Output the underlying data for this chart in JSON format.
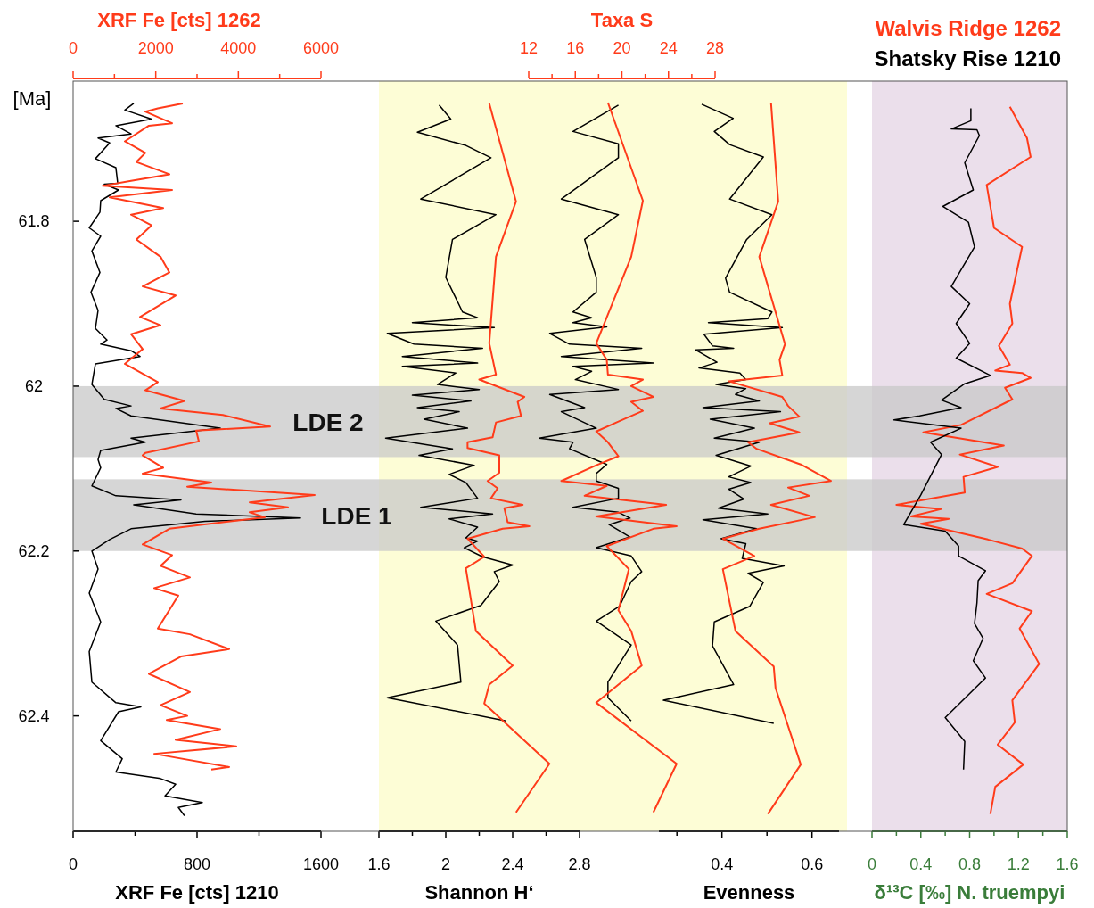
{
  "chart_data": [
    {
      "type": "line",
      "orientation": "horizontal",
      "ylabel": "[Ma]",
      "xlabel": "XRF Fe [cts] 1210",
      "x2label": "XRF Fe [cts] 1262",
      "ylim": [
        62.54,
        61.63
      ],
      "yticks": [
        61.8,
        62,
        62.2,
        62.4
      ],
      "xlim": [
        0,
        1600
      ],
      "xticks": [
        0,
        {
          "value": 400,
          "label": null
        },
        800,
        {
          "value": 1200,
          "label": null
        },
        1600
      ],
      "x2lim": [
        0,
        6000
      ],
      "x2ticks": [
        0,
        {
          "value": 1000,
          "label": null
        },
        2000,
        {
          "value": 3000,
          "label": null
        },
        4000,
        {
          "value": 5000,
          "label": null
        },
        6000
      ],
      "bands": [
        {
          "axis": "y",
          "from": 62.0,
          "to": 62.086,
          "label": "LDE 2",
          "color": "#c8c8c8"
        },
        {
          "axis": "y",
          "from": 62.113,
          "to": 62.2,
          "label": "LDE 1",
          "color": "#c8c8c8"
        }
      ],
      "series": [
        {
          "color": "#000000",
          "x": [
            61.657,
            61.665,
            61.676,
            61.684,
            61.694,
            61.699,
            61.705,
            61.724,
            61.735,
            61.754,
            61.755,
            61.762,
            61.775,
            61.789,
            61.808,
            61.818,
            61.836,
            61.862,
            61.886,
            61.908,
            61.93,
            61.944,
            61.949,
            61.957,
            61.964,
            61.973,
            61.998,
            62.016,
            62.024,
            62.027,
            62.036,
            62.051,
            62.063,
            62.068,
            62.078,
            62.089,
            62.099,
            62.121,
            62.133,
            62.138,
            62.144,
            62.155,
            62.16,
            62.164,
            62.173,
            62.186,
            62.2,
            62.222,
            62.251,
            62.286,
            62.322,
            62.359,
            62.384,
            62.389,
            62.395,
            62.43,
            62.452,
            62.468,
            62.476,
            62.483,
            62.497,
            62.505,
            62.511,
            62.521
          ],
          "values": [
            391,
            334,
            506,
            276,
            374,
            161,
            236,
            144,
            276,
            288,
            201,
            293,
            178,
            173,
            104,
            178,
            121,
            173,
            115,
            161,
            144,
            219,
            178,
            374,
            432,
            144,
            121,
            201,
            374,
            276,
            374,
            950,
            374,
            466,
            178,
            161,
            178,
            121,
            276,
            696,
            391,
            794,
            1468,
            852,
            374,
            236,
            121,
            161,
            104,
            178,
            104,
            121,
            276,
            437,
            293,
            178,
            317,
            276,
            564,
            662,
            593,
            834,
            679,
            719
          ]
        },
        {
          "color": "#ff3b1a",
          "axis": "x2",
          "x": [
            61.657,
            61.663,
            61.667,
            61.681,
            61.684,
            61.703,
            61.717,
            61.728,
            61.743,
            61.751,
            61.757,
            61.762,
            61.771,
            61.784,
            61.792,
            61.805,
            61.822,
            61.843,
            61.862,
            61.879,
            61.89,
            61.916,
            61.926,
            61.937,
            61.955,
            61.973,
            61.995,
            62.005,
            62.018,
            62.027,
            62.035,
            62.049,
            62.054,
            62.067,
            62.081,
            62.084,
            62.099,
            62.106,
            62.117,
            62.122,
            62.132,
            62.141,
            62.147,
            62.153,
            62.159,
            62.173,
            62.192,
            62.205,
            62.218,
            62.232,
            62.245,
            62.254,
            62.294,
            62.301,
            62.319,
            62.328,
            62.349,
            62.371,
            62.387,
            62.4,
            62.405,
            62.416,
            62.429,
            62.437,
            62.446,
            62.462,
            62.465
          ],
          "values": [
            2654,
            2050,
            1748,
            2395,
            1834,
            1252,
            1748,
            1532,
            2331,
            1403,
            712,
            2395,
            885,
            2180,
            1403,
            1899,
            1532,
            2115,
            2331,
            1683,
            2482,
            1619,
            2115,
            1403,
            1683,
            1252,
            2050,
            1748,
            2698,
            2115,
            3625,
            4769,
            2978,
            3043,
            1748,
            1683,
            2180,
            1683,
            3345,
            2762,
            5848,
            4273,
            5201,
            4273,
            4640,
            2331,
            1683,
            2395,
            2115,
            2827,
            1964,
            2546,
            2050,
            2827,
            3777,
            2611,
            1834,
            2827,
            2115,
            2762,
            2266,
            3561,
            2482,
            3949,
            1964,
            3777,
            3345
          ]
        }
      ]
    },
    {
      "type": "line",
      "orientation": "horizontal",
      "xlabel": "Shannon H‘",
      "tick_labels": "x",
      "ylim": [
        62.54,
        61.63
      ],
      "xlim": [
        1.6,
        2.8
      ],
      "xticks": [
        1.6,
        {
          "value": 1.8,
          "label": null
        },
        2,
        {
          "value": 2.2,
          "label": null
        },
        2.4,
        {
          "value": 2.6,
          "label": null
        },
        2.8
      ],
      "series": [
        {
          "color": "#000000",
          "x": [
            61.659,
            61.676,
            61.692,
            61.708,
            61.723,
            61.773,
            61.792,
            61.822,
            61.868,
            61.91,
            61.917,
            61.923,
            61.929,
            61.936,
            61.949,
            61.954,
            61.964,
            61.972,
            61.976,
            61.984,
            61.998,
            62.004,
            62.011,
            62.018,
            62.026,
            62.031,
            62.04,
            62.051,
            62.063,
            62.076,
            62.084,
            62.096,
            62.107,
            62.117,
            62.136,
            62.147,
            62.155,
            62.161,
            62.171,
            62.184,
            62.188,
            62.196,
            62.207,
            62.217,
            62.225,
            62.237,
            62.266,
            62.285,
            62.314,
            62.359,
            62.378,
            62.406
          ],
          "values": [
            1.96,
            2.03,
            1.83,
            2.12,
            2.27,
            1.85,
            2.3,
            2.04,
            2.0,
            2.1,
            2.19,
            1.8,
            2.29,
            1.65,
            1.81,
            2.22,
            1.74,
            2.19,
            1.74,
            2.06,
            1.95,
            2.2,
            1.8,
            2.15,
            1.83,
            2.08,
            1.87,
            2.13,
            1.64,
            2.04,
            1.84,
            2.17,
            2.02,
            2.12,
            2.19,
            1.85,
            2.28,
            2.02,
            2.19,
            2.12,
            2.19,
            2.11,
            2.22,
            2.4,
            2.29,
            2.32,
            2.21,
            1.94,
            2.07,
            2.09,
            1.65,
            2.36
          ]
        },
        {
          "color": "#ff3b1a",
          "x": [
            61.657,
            61.776,
            61.843,
            61.948,
            61.986,
            61.992,
            62.013,
            62.019,
            62.036,
            62.044,
            62.062,
            62.068,
            62.075,
            62.084,
            62.105,
            62.115,
            62.124,
            62.136,
            62.144,
            62.148,
            62.165,
            62.17,
            62.173,
            62.185,
            62.207,
            62.221,
            62.297,
            62.339,
            62.362,
            62.385,
            62.458,
            62.517
          ],
          "values": [
            2.26,
            2.42,
            2.3,
            2.26,
            2.3,
            2.2,
            2.47,
            2.43,
            2.45,
            2.3,
            2.28,
            2.13,
            2.13,
            2.32,
            2.32,
            2.25,
            2.31,
            2.27,
            2.46,
            2.35,
            2.37,
            2.5,
            2.34,
            2.13,
            2.23,
            2.12,
            2.18,
            2.4,
            2.26,
            2.23,
            2.62,
            2.42
          ]
        }
      ]
    },
    {
      "type": "line",
      "orientation": "horizontal",
      "x2label": "Taxa S",
      "tick_labels": "x",
      "ylim": [
        62.54,
        61.63
      ],
      "x2lim": [
        12,
        28
      ],
      "x2ticks": [
        12,
        {
          "value": 14,
          "label": null
        },
        16,
        {
          "value": 18,
          "label": null
        },
        20,
        {
          "value": 22,
          "label": null
        },
        24,
        {
          "value": 26,
          "label": null
        },
        28
      ],
      "series": [
        {
          "color": "#000000",
          "axis": "x2",
          "x": [
            61.659,
            61.691,
            61.706,
            61.723,
            61.773,
            61.792,
            61.822,
            61.868,
            61.886,
            61.91,
            61.917,
            61.923,
            61.928,
            61.936,
            61.949,
            61.954,
            61.964,
            61.972,
            61.976,
            61.982,
            61.992,
            62.004,
            62.01,
            62.026,
            62.031,
            62.051,
            62.063,
            62.068,
            62.076,
            62.095,
            62.106,
            62.115,
            62.124,
            62.136,
            62.147,
            62.153,
            62.16,
            62.168,
            62.183,
            62.196,
            62.206,
            62.225,
            62.237,
            62.267,
            62.285,
            62.314,
            62.359,
            62.378,
            62.406
          ],
          "values": [
            19.7,
            15.8,
            19.7,
            19.7,
            14.8,
            19.7,
            16.8,
            17.8,
            17.8,
            15.8,
            17.4,
            15.8,
            18.7,
            13.8,
            15.5,
            21.7,
            14.8,
            22.7,
            15.8,
            17.4,
            16.0,
            19.7,
            13.8,
            16.8,
            14.8,
            17.8,
            12.9,
            15.8,
            15.5,
            18.7,
            17.8,
            17.8,
            19.7,
            19.7,
            15.8,
            19.7,
            20.7,
            18.9,
            20.7,
            17.8,
            20.8,
            21.7,
            20.8,
            19.8,
            17.8,
            20.8,
            18.8,
            18.8,
            20.8
          ]
        },
        {
          "color": "#ff3b1a",
          "axis": "x2",
          "x": [
            61.656,
            61.775,
            61.843,
            61.948,
            61.968,
            61.986,
            61.992,
            62.0,
            62.013,
            62.019,
            62.03,
            62.043,
            62.055,
            62.068,
            62.085,
            62.096,
            62.115,
            62.121,
            62.133,
            62.144,
            62.158,
            62.17,
            62.173,
            62.194,
            62.222,
            62.272,
            62.297,
            62.339,
            62.384,
            62.458,
            62.517
          ],
          "values": [
            18.8,
            21.8,
            20.8,
            17.8,
            18.7,
            18.8,
            21.8,
            20.8,
            22.7,
            20.8,
            21.8,
            19.7,
            17.8,
            18.8,
            19.7,
            17.8,
            14.8,
            18.7,
            16.8,
            23.8,
            17.8,
            24.7,
            22.7,
            18.7,
            20.6,
            19.7,
            20.8,
            21.7,
            17.8,
            24.7,
            22.7
          ]
        }
      ]
    },
    {
      "type": "line",
      "orientation": "horizontal",
      "xlabel": "Evenness",
      "tick_labels": "x",
      "ylim": [
        62.54,
        61.63
      ],
      "xlim": [
        0.26,
        0.66
      ],
      "xticks": [
        {
          "value": 0.3,
          "label": null
        },
        0.4,
        {
          "value": 0.5,
          "label": null
        },
        0.6
      ],
      "series": [
        {
          "color": "#000000",
          "x": [
            61.658,
            61.675,
            61.691,
            61.707,
            61.722,
            61.773,
            61.792,
            61.822,
            61.869,
            61.886,
            61.91,
            61.918,
            61.923,
            61.929,
            61.937,
            61.951,
            61.954,
            61.956,
            61.971,
            61.978,
            61.984,
            61.992,
            61.998,
            62.003,
            62.01,
            62.018,
            62.026,
            62.031,
            62.04,
            62.051,
            62.063,
            62.068,
            62.084,
            62.097,
            62.11,
            62.117,
            62.125,
            62.137,
            62.148,
            62.155,
            62.162,
            62.173,
            62.185,
            62.191,
            62.209,
            62.218,
            62.227,
            62.238,
            62.267,
            62.286,
            62.315,
            62.362,
            62.381,
            62.409
          ],
          "values": [
            0.355,
            0.425,
            0.383,
            0.417,
            0.492,
            0.417,
            0.511,
            0.455,
            0.408,
            0.417,
            0.511,
            0.502,
            0.37,
            0.534,
            0.36,
            0.379,
            0.426,
            0.342,
            0.389,
            0.349,
            0.44,
            0.453,
            0.387,
            0.453,
            0.43,
            0.483,
            0.358,
            0.53,
            0.374,
            0.472,
            0.383,
            0.483,
            0.387,
            0.464,
            0.415,
            0.464,
            0.415,
            0.449,
            0.392,
            0.502,
            0.358,
            0.477,
            0.398,
            0.453,
            0.445,
            0.538,
            0.458,
            0.492,
            0.462,
            0.383,
            0.379,
            0.426,
            0.27,
            0.515
          ]
        },
        {
          "color": "#ff3b1a",
          "x": [
            61.656,
            61.776,
            61.843,
            61.949,
            61.968,
            61.987,
            61.994,
            62.013,
            62.024,
            62.037,
            62.045,
            62.056,
            62.068,
            62.076,
            62.095,
            62.115,
            62.123,
            62.133,
            62.144,
            62.159,
            62.173,
            62.185,
            62.206,
            62.222,
            62.297,
            62.34,
            62.366,
            62.459,
            62.519
          ],
          "values": [
            0.509,
            0.525,
            0.483,
            0.54,
            0.528,
            0.534,
            0.415,
            0.534,
            0.547,
            0.572,
            0.506,
            0.572,
            0.458,
            0.477,
            0.575,
            0.642,
            0.547,
            0.594,
            0.509,
            0.606,
            0.483,
            0.402,
            0.472,
            0.402,
            0.43,
            0.515,
            0.519,
            0.575,
            0.502
          ]
        }
      ]
    },
    {
      "type": "line",
      "orientation": "horizontal",
      "xlabel": "δ¹³C [‰] N. truempyi",
      "tick_labels": "x",
      "legend": "top right",
      "ylim": [
        62.54,
        61.63
      ],
      "xlim": [
        0,
        1.6
      ],
      "xticks": [
        0,
        {
          "value": 0.2,
          "label": null
        },
        0.4,
        {
          "value": 0.6,
          "label": null
        },
        0.8,
        {
          "value": 1.0,
          "label": null
        },
        1.2,
        {
          "value": 1.4,
          "label": null
        },
        1.6
      ],
      "series": [
        {
          "name": "Walvis Ridge 1262",
          "color": "#ff3b1a",
          "x": [
            61.661,
            61.699,
            61.722,
            61.756,
            61.808,
            61.831,
            61.9,
            61.924,
            61.951,
            61.974,
            61.981,
            61.984,
            61.99,
            62.002,
            62.016,
            62.047,
            62.056,
            62.072,
            62.083,
            62.098,
            62.11,
            62.129,
            62.144,
            62.149,
            62.158,
            62.161,
            62.167,
            62.186,
            62.197,
            62.206,
            62.239,
            62.252,
            62.273,
            62.294,
            62.337,
            62.381,
            62.408,
            62.435,
            62.459,
            62.486,
            62.519
          ],
          "values": [
            1.13,
            1.27,
            1.3,
            0.94,
            1.0,
            1.23,
            1.13,
            1.15,
            1.04,
            1.13,
            1.01,
            1.23,
            1.3,
            1.09,
            1.15,
            0.73,
            0.42,
            1.08,
            0.72,
            1.03,
            0.75,
            0.76,
            0.2,
            0.57,
            0.32,
            0.63,
            0.4,
            0.95,
            1.23,
            1.31,
            1.15,
            0.94,
            1.31,
            1.21,
            1.37,
            1.15,
            1.17,
            1.03,
            1.24,
            1.01,
            0.97
          ]
        },
        {
          "name": "Shatsky Rise 1210",
          "color": "#000000",
          "x": [
            61.663,
            61.678,
            61.688,
            61.689,
            61.696,
            61.729,
            61.762,
            61.782,
            61.801,
            61.831,
            61.879,
            61.9,
            61.924,
            61.948,
            61.966,
            61.987,
            61.997,
            62.017,
            62.026,
            62.036,
            62.041,
            62.051,
            62.068,
            62.083,
            62.132,
            62.168,
            62.176,
            62.194,
            62.206,
            62.224,
            62.236,
            62.263,
            62.288,
            62.306,
            62.333,
            62.354,
            62.402,
            62.431,
            62.465
          ],
          "values": [
            0.81,
            0.81,
            0.65,
            0.86,
            0.88,
            0.76,
            0.83,
            0.58,
            0.79,
            0.84,
            0.65,
            0.8,
            0.69,
            0.8,
            0.69,
            0.97,
            0.76,
            0.57,
            0.73,
            0.39,
            0.18,
            0.73,
            0.48,
            0.57,
            0.4,
            0.26,
            0.6,
            0.71,
            0.71,
            0.93,
            0.87,
            0.86,
            0.84,
            0.91,
            0.83,
            0.93,
            0.6,
            0.76,
            0.75
          ]
        }
      ]
    }
  ]
}
